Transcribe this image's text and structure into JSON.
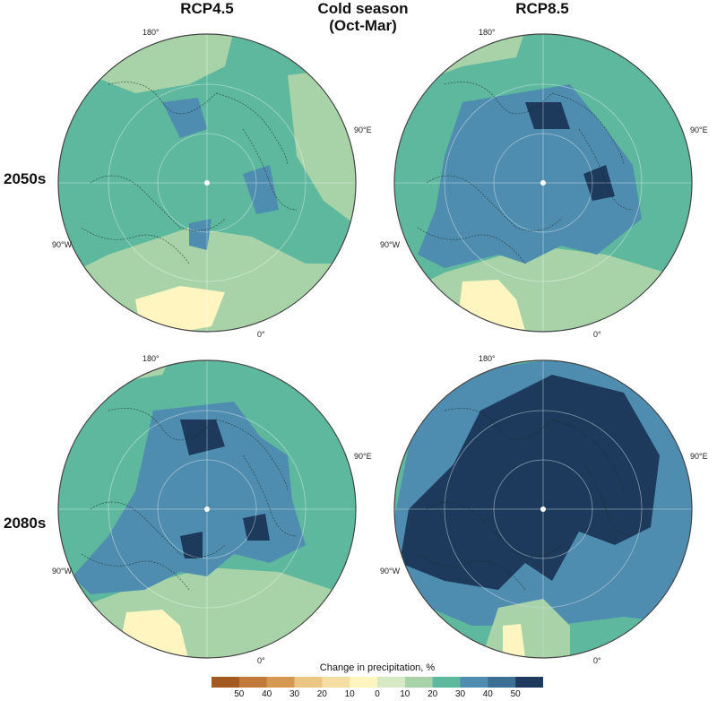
{
  "headers": {
    "left": "RCP4.5",
    "center_line1": "Cold season",
    "center_line2": "(Oct-Mar)",
    "right": "RCP8.5"
  },
  "rows": [
    "2050s",
    "2080s"
  ],
  "longitude_labels": {
    "top": "180°",
    "right": "90°E",
    "left": "90°W",
    "bottom": "0°"
  },
  "panels": [
    {
      "scenario": "RCP4.5",
      "period": "2050s",
      "base": "#5eb89d",
      "ocean_class": "20-30",
      "core_class": "30-40"
    },
    {
      "scenario": "RCP8.5",
      "period": "2050s",
      "base": "#5eb89d",
      "ocean_class": "20-30",
      "core_class": "30-40"
    },
    {
      "scenario": "RCP4.5",
      "period": "2080s",
      "base": "#5eb89d",
      "ocean_class": "30-40",
      "core_class": "40-50"
    },
    {
      "scenario": "RCP8.5",
      "period": "2080s",
      "base": "#3d6f95",
      "ocean_class": "40-50",
      "core_class": ">50"
    }
  ],
  "colorbar": {
    "title": "Change in precipitation, %",
    "tick_labels": [
      "50",
      "40",
      "30",
      "20",
      "10",
      "0",
      "10",
      "20",
      "30",
      "40",
      "50"
    ],
    "colors": [
      "#a35a22",
      "#c07a3c",
      "#d69954",
      "#ebc583",
      "#f5dea4",
      "#fef5c0",
      "#d8e9c6",
      "#a8d3a8",
      "#5eb89d",
      "#4f8db0",
      "#3d6f95",
      "#1d3a5c"
    ]
  }
}
